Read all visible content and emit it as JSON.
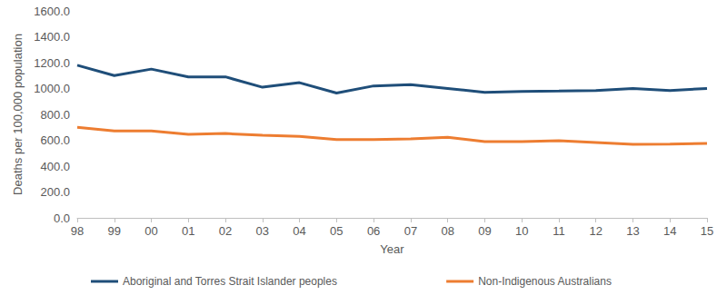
{
  "chart_data": {
    "type": "line",
    "x_label": "Year",
    "y_label": "Deaths per 100,000 population",
    "categories": [
      "98",
      "99",
      "00",
      "01",
      "02",
      "03",
      "04",
      "05",
      "06",
      "07",
      "08",
      "09",
      "10",
      "11",
      "12",
      "13",
      "14",
      "15"
    ],
    "series": [
      {
        "name": "Aboriginal and Torres Strait Islander peoples",
        "color": "#1f4e79",
        "values": [
          1180,
          1100,
          1150,
          1090,
          1090,
          1010,
          1045,
          965,
          1020,
          1030,
          1000,
          970,
          978,
          980,
          985,
          1000,
          985,
          1000
        ]
      },
      {
        "name": "Non-Indigenous Australians",
        "color": "#ed7d31",
        "values": [
          700,
          672,
          672,
          645,
          652,
          638,
          630,
          605,
          605,
          610,
          622,
          590,
          590,
          596,
          583,
          568,
          570,
          576
        ]
      }
    ],
    "ylim": [
      0,
      1600
    ],
    "yticks": [
      {
        "value": 0,
        "label": "0.0"
      },
      {
        "value": 200,
        "label": "200.0"
      },
      {
        "value": 400,
        "label": "400.0"
      },
      {
        "value": 600,
        "label": "600.0"
      },
      {
        "value": 800,
        "label": "800.0"
      },
      {
        "value": 1000,
        "label": "1000.0"
      },
      {
        "value": 1200,
        "label": "1200.0"
      },
      {
        "value": 1400,
        "label": "1400.0"
      },
      {
        "value": 1600,
        "label": "1600.0"
      }
    ],
    "grid": false,
    "legend": "bottom"
  }
}
